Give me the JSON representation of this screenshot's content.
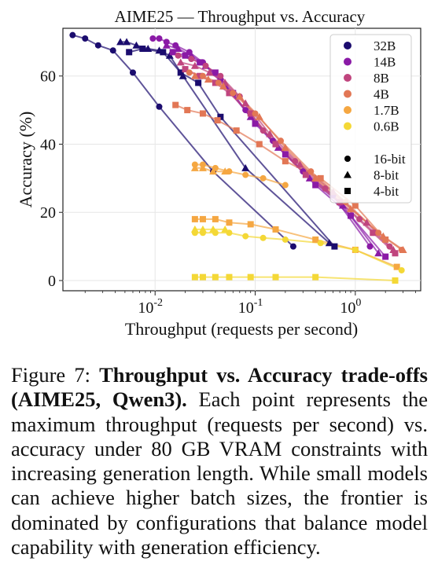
{
  "chart_data": {
    "type": "scatter",
    "title": "AIME25 — Throughput vs. Accuracy",
    "xlabel": "Throughput (requests per second)",
    "ylabel": "Accuracy (%)",
    "xscale": "log",
    "xlim": [
      0.0012,
      4.5
    ],
    "ylim": [
      -3,
      74
    ],
    "xticks": [
      0.01,
      0.1,
      1
    ],
    "xtick_labels": [
      "10^-2",
      "10^-1",
      "10^0"
    ],
    "yticks": [
      0,
      20,
      40,
      60
    ],
    "ytick_labels": [
      "0",
      "20",
      "40",
      "60"
    ],
    "grid": true,
    "legend_position": "top-right",
    "legend_models": [
      {
        "name": "32B",
        "color": "#1b0c6e"
      },
      {
        "name": "14B",
        "color": "#8a1aa6"
      },
      {
        "name": "8B",
        "color": "#c0457e"
      },
      {
        "name": "4B",
        "color": "#e27755"
      },
      {
        "name": "1.7B",
        "color": "#f5a742"
      },
      {
        "name": "0.6B",
        "color": "#f4d836"
      }
    ],
    "legend_precisions": [
      {
        "name": "16-bit",
        "marker": "circle"
      },
      {
        "name": "8-bit",
        "marker": "triangle"
      },
      {
        "name": "4-bit",
        "marker": "square"
      }
    ],
    "series": [
      {
        "model": "32B",
        "precision": "16-bit",
        "color": "#1b0c6e",
        "marker": "circle",
        "x": [
          0.0015,
          0.002,
          0.0027,
          0.0038,
          0.006,
          0.011,
          0.038,
          0.24
        ],
        "y": [
          72,
          71,
          69,
          67.5,
          61,
          51,
          32,
          10
        ]
      },
      {
        "model": "32B",
        "precision": "8-bit",
        "color": "#1b0c6e",
        "marker": "triangle",
        "x": [
          0.0045,
          0.0052,
          0.0065,
          0.0085,
          0.011,
          0.014,
          0.019,
          0.08,
          0.55
        ],
        "y": [
          70,
          70,
          69,
          68,
          67.5,
          66,
          60,
          33,
          11
        ]
      },
      {
        "model": "32B",
        "precision": "4-bit",
        "color": "#1b0c6e",
        "marker": "square",
        "x": [
          0.0055,
          0.0075,
          0.012,
          0.018,
          0.027,
          0.045,
          0.62
        ],
        "y": [
          67,
          68,
          67,
          61,
          58,
          48,
          10
        ]
      },
      {
        "model": "14B",
        "precision": "16-bit",
        "color": "#8a1aa6",
        "marker": "circle",
        "x": [
          0.0095,
          0.011,
          0.013,
          0.016,
          0.022,
          0.03,
          0.045,
          0.08,
          0.15,
          0.3,
          0.6,
          1.4
        ],
        "y": [
          71,
          71,
          70,
          69,
          67,
          64,
          59,
          50,
          41,
          32,
          25,
          10
        ]
      },
      {
        "model": "14B",
        "precision": "8-bit",
        "color": "#8a1aa6",
        "marker": "triangle",
        "x": [
          0.013,
          0.017,
          0.023,
          0.032,
          0.05,
          0.09,
          0.17,
          0.35,
          0.75,
          1.7
        ],
        "y": [
          69,
          68,
          66,
          63,
          57,
          48,
          39,
          30,
          22,
          8
        ]
      },
      {
        "model": "14B",
        "precision": "4-bit",
        "color": "#8a1aa6",
        "marker": "square",
        "x": [
          0.015,
          0.02,
          0.028,
          0.04,
          0.06,
          0.1,
          0.2,
          0.4,
          0.9,
          2.0
        ],
        "y": [
          67,
          66,
          64,
          61,
          55,
          46,
          37,
          28,
          19,
          7
        ]
      },
      {
        "model": "8B",
        "precision": "16-bit",
        "color": "#c0457e",
        "marker": "circle",
        "x": [
          0.017,
          0.023,
          0.032,
          0.045,
          0.07,
          0.12,
          0.25,
          0.5,
          1.1,
          2.2
        ],
        "y": [
          66,
          65,
          63,
          60,
          54,
          44,
          35,
          27,
          18,
          10
        ]
      },
      {
        "model": "8B",
        "precision": "8-bit",
        "color": "#c0457e",
        "marker": "triangle",
        "x": [
          0.018,
          0.025,
          0.035,
          0.05,
          0.08,
          0.14,
          0.28,
          0.6,
          1.3,
          2.4
        ],
        "y": [
          64,
          63,
          61,
          58,
          52,
          43,
          34,
          26,
          17,
          9
        ]
      },
      {
        "model": "8B",
        "precision": "4-bit",
        "color": "#c0457e",
        "marker": "square",
        "x": [
          0.02,
          0.028,
          0.04,
          0.055,
          0.09,
          0.16,
          0.32,
          0.7,
          1.5,
          2.5
        ],
        "y": [
          62,
          60,
          58,
          55,
          49,
          40,
          31,
          23,
          14,
          8
        ]
      },
      {
        "model": "4B",
        "precision": "16-bit",
        "color": "#e27755",
        "marker": "circle",
        "x": [
          0.022,
          0.03,
          0.043,
          0.06,
          0.1,
          0.18,
          0.36,
          0.8,
          1.7,
          2.9
        ],
        "y": [
          61,
          60,
          58,
          55,
          49,
          41,
          32,
          23,
          14,
          9
        ]
      },
      {
        "model": "4B",
        "precision": "8-bit",
        "color": "#e27755",
        "marker": "triangle",
        "x": [
          0.025,
          0.034,
          0.048,
          0.07,
          0.11,
          0.2,
          0.4,
          0.9,
          1.9,
          3.0
        ],
        "y": [
          60,
          59,
          57,
          54,
          48,
          39,
          30,
          21,
          13,
          9
        ]
      },
      {
        "model": "4B",
        "precision": "4-bit",
        "color": "#e27755",
        "marker": "square",
        "x": [
          0.016,
          0.021,
          0.03,
          0.042,
          0.065,
          0.11,
          0.2,
          0.45,
          1.0,
          2.0
        ],
        "y": [
          51.5,
          50,
          49,
          47,
          44,
          40,
          35,
          30,
          22,
          12
        ]
      },
      {
        "model": "1.7B",
        "precision": "16-bit",
        "color": "#f5a742",
        "marker": "circle",
        "x": [
          0.025,
          0.03,
          0.04,
          0.055,
          0.08,
          0.12,
          0.2
        ],
        "y": [
          34,
          34,
          33,
          32,
          31,
          30,
          28
        ]
      },
      {
        "model": "1.7B",
        "precision": "8-bit",
        "color": "#f5a742",
        "marker": "triangle",
        "x": [
          0.025,
          0.03,
          0.038,
          0.05
        ],
        "y": [
          33,
          33,
          32,
          32
        ]
      },
      {
        "model": "1.7B",
        "precision": "4-bit",
        "color": "#f5a742",
        "marker": "square",
        "x": [
          0.025,
          0.03,
          0.04,
          0.055,
          0.09,
          0.16,
          0.4,
          1.0,
          2.6
        ],
        "y": [
          18,
          18,
          18,
          17,
          16.5,
          15,
          12,
          9,
          4
        ]
      },
      {
        "model": "0.6B",
        "precision": "16-bit",
        "color": "#f4d836",
        "marker": "circle",
        "x": [
          0.025,
          0.03,
          0.04,
          0.055,
          0.08,
          0.12,
          0.2,
          0.45,
          1.0,
          2.9
        ],
        "y": [
          14,
          14,
          14,
          14,
          13,
          12.5,
          12,
          11,
          9,
          3
        ]
      },
      {
        "model": "0.6B",
        "precision": "8-bit",
        "color": "#f4d836",
        "marker": "triangle",
        "x": [
          0.025,
          0.03,
          0.038,
          0.05
        ],
        "y": [
          15,
          15,
          15,
          15
        ]
      },
      {
        "model": "0.6B",
        "precision": "4-bit",
        "color": "#f4d836",
        "marker": "square",
        "x": [
          0.025,
          0.03,
          0.04,
          0.055,
          0.09,
          0.16,
          0.4,
          2.5
        ],
        "y": [
          1,
          1,
          1,
          1,
          1,
          1,
          1,
          0
        ]
      }
    ]
  },
  "caption": {
    "label": "Figure 7:",
    "bold": "Throughput vs.  Accuracy trade-offs (AIME25, Qwen3).",
    "text": "Each point represents the maximum throughput (requests per second) vs.  accuracy under 80 GB VRAM constraints with increasing generation length. While small models can achieve higher batch sizes, the frontier is dominated by configurations that balance model capability with generation efficiency."
  }
}
